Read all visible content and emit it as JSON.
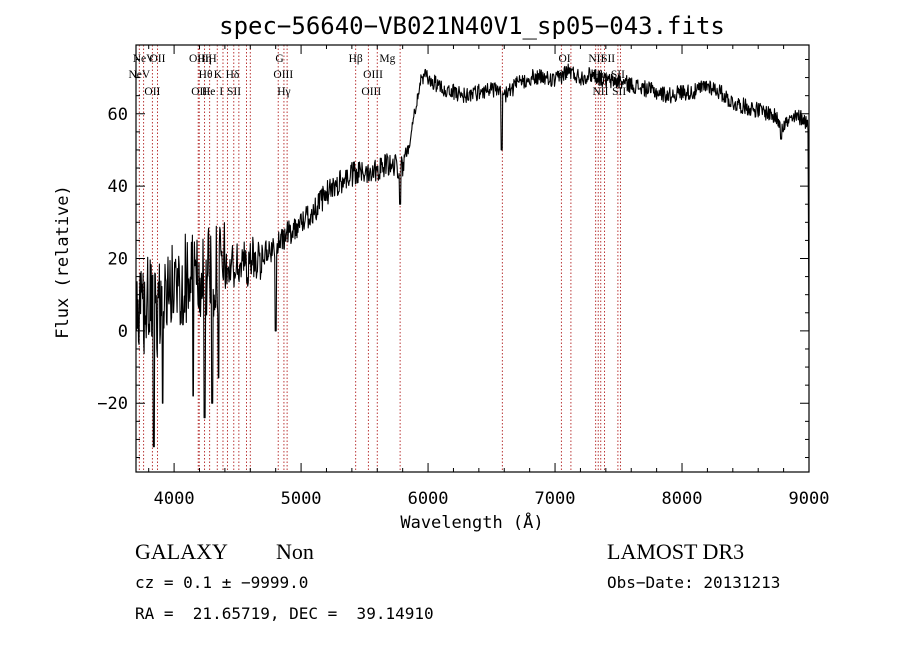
{
  "chart_data": {
    "type": "line",
    "title": "spec−56640−VB021N40V1_sp05−043.fits",
    "xlabel": "Wavelength (Å)",
    "ylabel": "Flux (relative)",
    "xlim": [
      3700,
      9000
    ],
    "ylim": [
      -39,
      79
    ],
    "xticks": [
      4000,
      5000,
      6000,
      7000,
      8000,
      9000
    ],
    "yticks": [
      -20,
      0,
      20,
      40,
      60
    ],
    "ytick_labels": [
      "−20",
      "0",
      "20",
      "40",
      "60"
    ],
    "line_color": "#000000",
    "marker_color": "#b22222",
    "spectrum_anchors": [
      [
        3700,
        0
      ],
      [
        3750,
        5
      ],
      [
        3800,
        8
      ],
      [
        3850,
        3
      ],
      [
        3900,
        10
      ],
      [
        4000,
        12
      ],
      [
        4100,
        15
      ],
      [
        4200,
        14
      ],
      [
        4300,
        16
      ],
      [
        4400,
        17
      ],
      [
        4500,
        18
      ],
      [
        4600,
        19
      ],
      [
        4700,
        21
      ],
      [
        4800,
        23
      ],
      [
        4900,
        27
      ],
      [
        5000,
        30
      ],
      [
        5100,
        33
      ],
      [
        5200,
        38
      ],
      [
        5300,
        41
      ],
      [
        5400,
        43
      ],
      [
        5500,
        44
      ],
      [
        5600,
        45
      ],
      [
        5700,
        46
      ],
      [
        5800,
        45
      ],
      [
        5850,
        52
      ],
      [
        5900,
        62
      ],
      [
        5950,
        70
      ],
      [
        6000,
        70
      ],
      [
        6100,
        67
      ],
      [
        6200,
        66
      ],
      [
        6300,
        65
      ],
      [
        6400,
        66
      ],
      [
        6500,
        67
      ],
      [
        6600,
        65
      ],
      [
        6700,
        68
      ],
      [
        6800,
        70
      ],
      [
        6900,
        70
      ],
      [
        7000,
        69
      ],
      [
        7100,
        72
      ],
      [
        7200,
        70
      ],
      [
        7300,
        71
      ],
      [
        7400,
        69
      ],
      [
        7500,
        69
      ],
      [
        7600,
        68
      ],
      [
        7700,
        67
      ],
      [
        7800,
        66
      ],
      [
        7900,
        65
      ],
      [
        8000,
        66
      ],
      [
        8100,
        66
      ],
      [
        8200,
        68
      ],
      [
        8300,
        66
      ],
      [
        8400,
        63
      ],
      [
        8500,
        62
      ],
      [
        8600,
        61
      ],
      [
        8700,
        60
      ],
      [
        8800,
        57
      ],
      [
        8900,
        59
      ],
      [
        8950,
        59
      ],
      [
        8990,
        57
      ]
    ],
    "spectrum_dips": [
      [
        3840,
        -32
      ],
      [
        3910,
        -20
      ],
      [
        4150,
        -18
      ],
      [
        4240,
        -24
      ],
      [
        4300,
        -20
      ],
      [
        4350,
        -13
      ],
      [
        4800,
        0
      ],
      [
        5780,
        35
      ],
      [
        6580,
        50
      ],
      [
        8780,
        53
      ]
    ],
    "lines": [
      {
        "label": "NeV",
        "x": 3726,
        "row": 1
      },
      {
        "label": "NeV",
        "x": 3760,
        "row": 0
      },
      {
        "label": "OII",
        "x": 3829,
        "row": 2
      },
      {
        "label": "OII",
        "x": 3869,
        "row": 0
      },
      {
        "label": "OIII",
        "x": 4195,
        "row": 0
      },
      {
        "label": "OII",
        "x": 4198,
        "row": 2
      },
      {
        "label": "Hη",
        "x": 4240,
        "row": 0
      },
      {
        "label": "Hθ",
        "x": 4248,
        "row": 1
      },
      {
        "label": "He",
        "x": 4272,
        "row": 2
      },
      {
        "label": "H",
        "x": 4303,
        "row": 0
      },
      {
        "label": "K",
        "x": 4345,
        "row": 1
      },
      {
        "label": "I",
        "x": 4372,
        "row": 2
      },
      {
        "label": "Hδ",
        "x": 4460,
        "row": 1
      },
      {
        "label": "SII",
        "x": 4472,
        "row": 2
      },
      {
        "label": "G",
        "x": 4830,
        "row": 0
      },
      {
        "label": "OIII",
        "x": 4860,
        "row": 1
      },
      {
        "label": "Hγ",
        "x": 4865,
        "row": 2
      },
      {
        "label": "Hβ",
        "x": 5430,
        "row": 0
      },
      {
        "label": "OIII",
        "x": 5567,
        "row": 1
      },
      {
        "label": "OIII",
        "x": 5553,
        "row": 2
      },
      {
        "label": "Mg",
        "x": 5680,
        "row": 0
      },
      {
        "label": "OI",
        "x": 7075,
        "row": 0
      },
      {
        "label": "OI",
        "x": 7058,
        "row": 1
      },
      {
        "label": "NII",
        "x": 7325,
        "row": 0
      },
      {
        "label": "SII",
        "x": 7418,
        "row": 0
      },
      {
        "label": "Hα",
        "x": 7355,
        "row": 1
      },
      {
        "label": "NII",
        "x": 7358,
        "row": 2
      },
      {
        "label": "SII",
        "x": 7495,
        "row": 1
      },
      {
        "label": "SII",
        "x": 7505,
        "row": 2
      }
    ],
    "line_markers": [
      3726,
      3760,
      3829,
      3869,
      4190,
      4198,
      4240,
      4280,
      4340,
      4385,
      4420,
      4470,
      4510,
      4570,
      4600,
      4820,
      4865,
      4890,
      5430,
      5530,
      5600,
      5780,
      6585,
      7050,
      7125,
      7320,
      7340,
      7360,
      7390,
      7495,
      7515
    ]
  },
  "info": {
    "class_label": "GALAXY",
    "subclass_label": "Non",
    "survey": "LAMOST DR3",
    "cz_line": "cz = 0.1 ± −9999.0",
    "obs_date": "Obs−Date: 20131213",
    "coords": "RA =  21.65719, DEC =  39.14910"
  }
}
